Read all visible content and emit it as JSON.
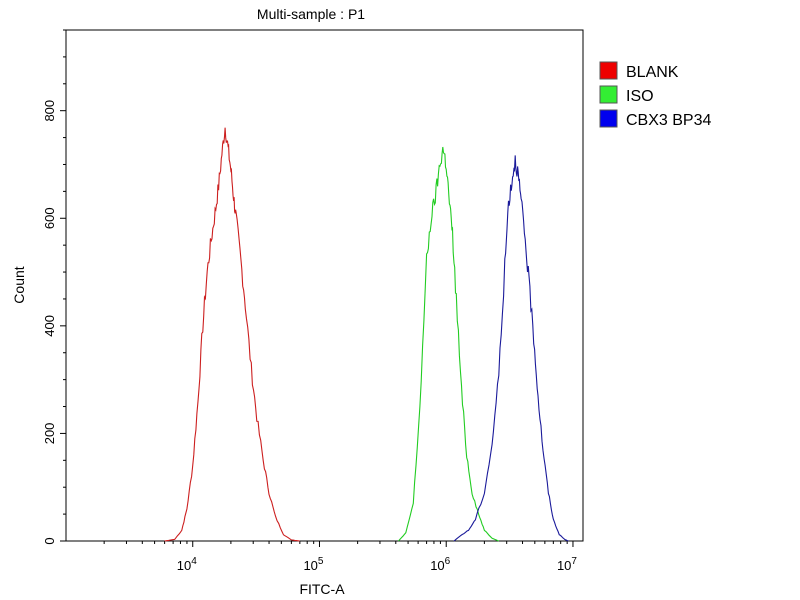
{
  "chart_data": {
    "type": "line",
    "title": "Multi-sample : P1",
    "xlabel": "FITC-A",
    "ylabel": "Count",
    "x_scale": "log",
    "xlim": [
      1000,
      12000000
    ],
    "ylim": [
      0,
      950
    ],
    "x_ticks": [
      {
        "value": 10000,
        "base": "10",
        "exp": "4"
      },
      {
        "value": 100000,
        "base": "10",
        "exp": "5"
      },
      {
        "value": 1000000,
        "base": "10",
        "exp": "6"
      },
      {
        "value": 10000000,
        "base": "10",
        "exp": "7"
      }
    ],
    "y_ticks": [
      0,
      200,
      400,
      600,
      800
    ],
    "legend_position": "top-right",
    "grid": false,
    "series": [
      {
        "name": "BLANK",
        "color": "#cc1f1f",
        "legend_color": "#ee0000",
        "points": [
          [
            6000,
            0
          ],
          [
            7200,
            3
          ],
          [
            8200,
            20
          ],
          [
            9000,
            60
          ],
          [
            10000,
            140
          ],
          [
            11000,
            260
          ],
          [
            12000,
            400
          ],
          [
            13000,
            500
          ],
          [
            14000,
            560
          ],
          [
            15000,
            610
          ],
          [
            16000,
            660
          ],
          [
            17000,
            720
          ],
          [
            18000,
            770
          ],
          [
            19000,
            730
          ],
          [
            20000,
            690
          ],
          [
            21000,
            640
          ],
          [
            22000,
            600
          ],
          [
            24000,
            520
          ],
          [
            26000,
            440
          ],
          [
            29000,
            320
          ],
          [
            32000,
            230
          ],
          [
            36000,
            150
          ],
          [
            40000,
            90
          ],
          [
            45000,
            45
          ],
          [
            52000,
            12
          ],
          [
            60000,
            2
          ],
          [
            70000,
            0
          ]
        ]
      },
      {
        "name": "ISO",
        "color": "#22cc22",
        "legend_color": "#33ee33",
        "points": [
          [
            420000,
            0
          ],
          [
            480000,
            15
          ],
          [
            550000,
            70
          ],
          [
            620000,
            250
          ],
          [
            700000,
            520
          ],
          [
            760000,
            600
          ],
          [
            820000,
            640
          ],
          [
            880000,
            690
          ],
          [
            940000,
            730
          ],
          [
            1000000,
            700
          ],
          [
            1060000,
            630
          ],
          [
            1120000,
            570
          ],
          [
            1200000,
            450
          ],
          [
            1320000,
            280
          ],
          [
            1450000,
            160
          ],
          [
            1600000,
            90
          ],
          [
            1800000,
            50
          ],
          [
            2000000,
            20
          ],
          [
            2300000,
            5
          ],
          [
            2600000,
            0
          ]
        ]
      },
      {
        "name": "CBX3 BP34",
        "color": "#1a1a9a",
        "legend_color": "#0000ee",
        "points": [
          [
            1150000,
            0
          ],
          [
            1300000,
            10
          ],
          [
            1500000,
            20
          ],
          [
            1700000,
            40
          ],
          [
            2000000,
            90
          ],
          [
            2300000,
            180
          ],
          [
            2600000,
            310
          ],
          [
            2900000,
            510
          ],
          [
            3100000,
            630
          ],
          [
            3300000,
            670
          ],
          [
            3500000,
            710
          ],
          [
            3700000,
            680
          ],
          [
            3900000,
            630
          ],
          [
            4200000,
            560
          ],
          [
            4500000,
            480
          ],
          [
            4900000,
            380
          ],
          [
            5300000,
            270
          ],
          [
            5800000,
            170
          ],
          [
            6400000,
            90
          ],
          [
            7000000,
            40
          ],
          [
            7800000,
            12
          ],
          [
            8600000,
            3
          ],
          [
            9200000,
            0
          ]
        ]
      }
    ]
  }
}
